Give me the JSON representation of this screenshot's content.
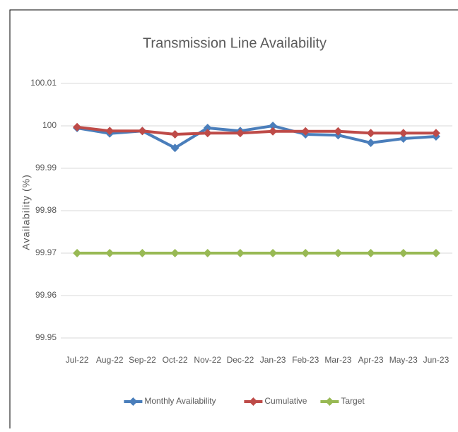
{
  "chart_data": {
    "type": "line",
    "title": "Transmission Line Availability",
    "y_label": "Availability (%)",
    "categories": [
      "Jul-22",
      "Aug-22",
      "Sep-22",
      "Oct-22",
      "Nov-22",
      "Dec-22",
      "Jan-23",
      "Feb-23",
      "Mar-23",
      "Apr-23",
      "May-23",
      "Jun-23"
    ],
    "series": [
      {
        "name": "Monthly Availability",
        "color": "#4a7ebb",
        "values": [
          99.9995,
          99.9982,
          99.9988,
          99.9948,
          99.9995,
          99.9988,
          100.0,
          99.998,
          99.9978,
          99.996,
          99.997,
          99.9975
        ]
      },
      {
        "name": "Cumulative",
        "color": "#be4b48",
        "values": [
          99.9997,
          99.9988,
          99.9988,
          99.998,
          99.9983,
          99.9983,
          99.9987,
          99.9987,
          99.9987,
          99.9983,
          99.9983,
          99.9983
        ]
      },
      {
        "name": "Target",
        "color": "#98b954",
        "values": [
          99.97,
          99.97,
          99.97,
          99.97,
          99.97,
          99.97,
          99.97,
          99.97,
          99.97,
          99.97,
          99.97,
          99.97
        ]
      }
    ],
    "ylim": [
      99.95,
      100.01
    ],
    "yticks": [
      99.95,
      99.96,
      99.97,
      99.98,
      99.99,
      100,
      100.01
    ],
    "grid": true,
    "legend": "bottom"
  }
}
